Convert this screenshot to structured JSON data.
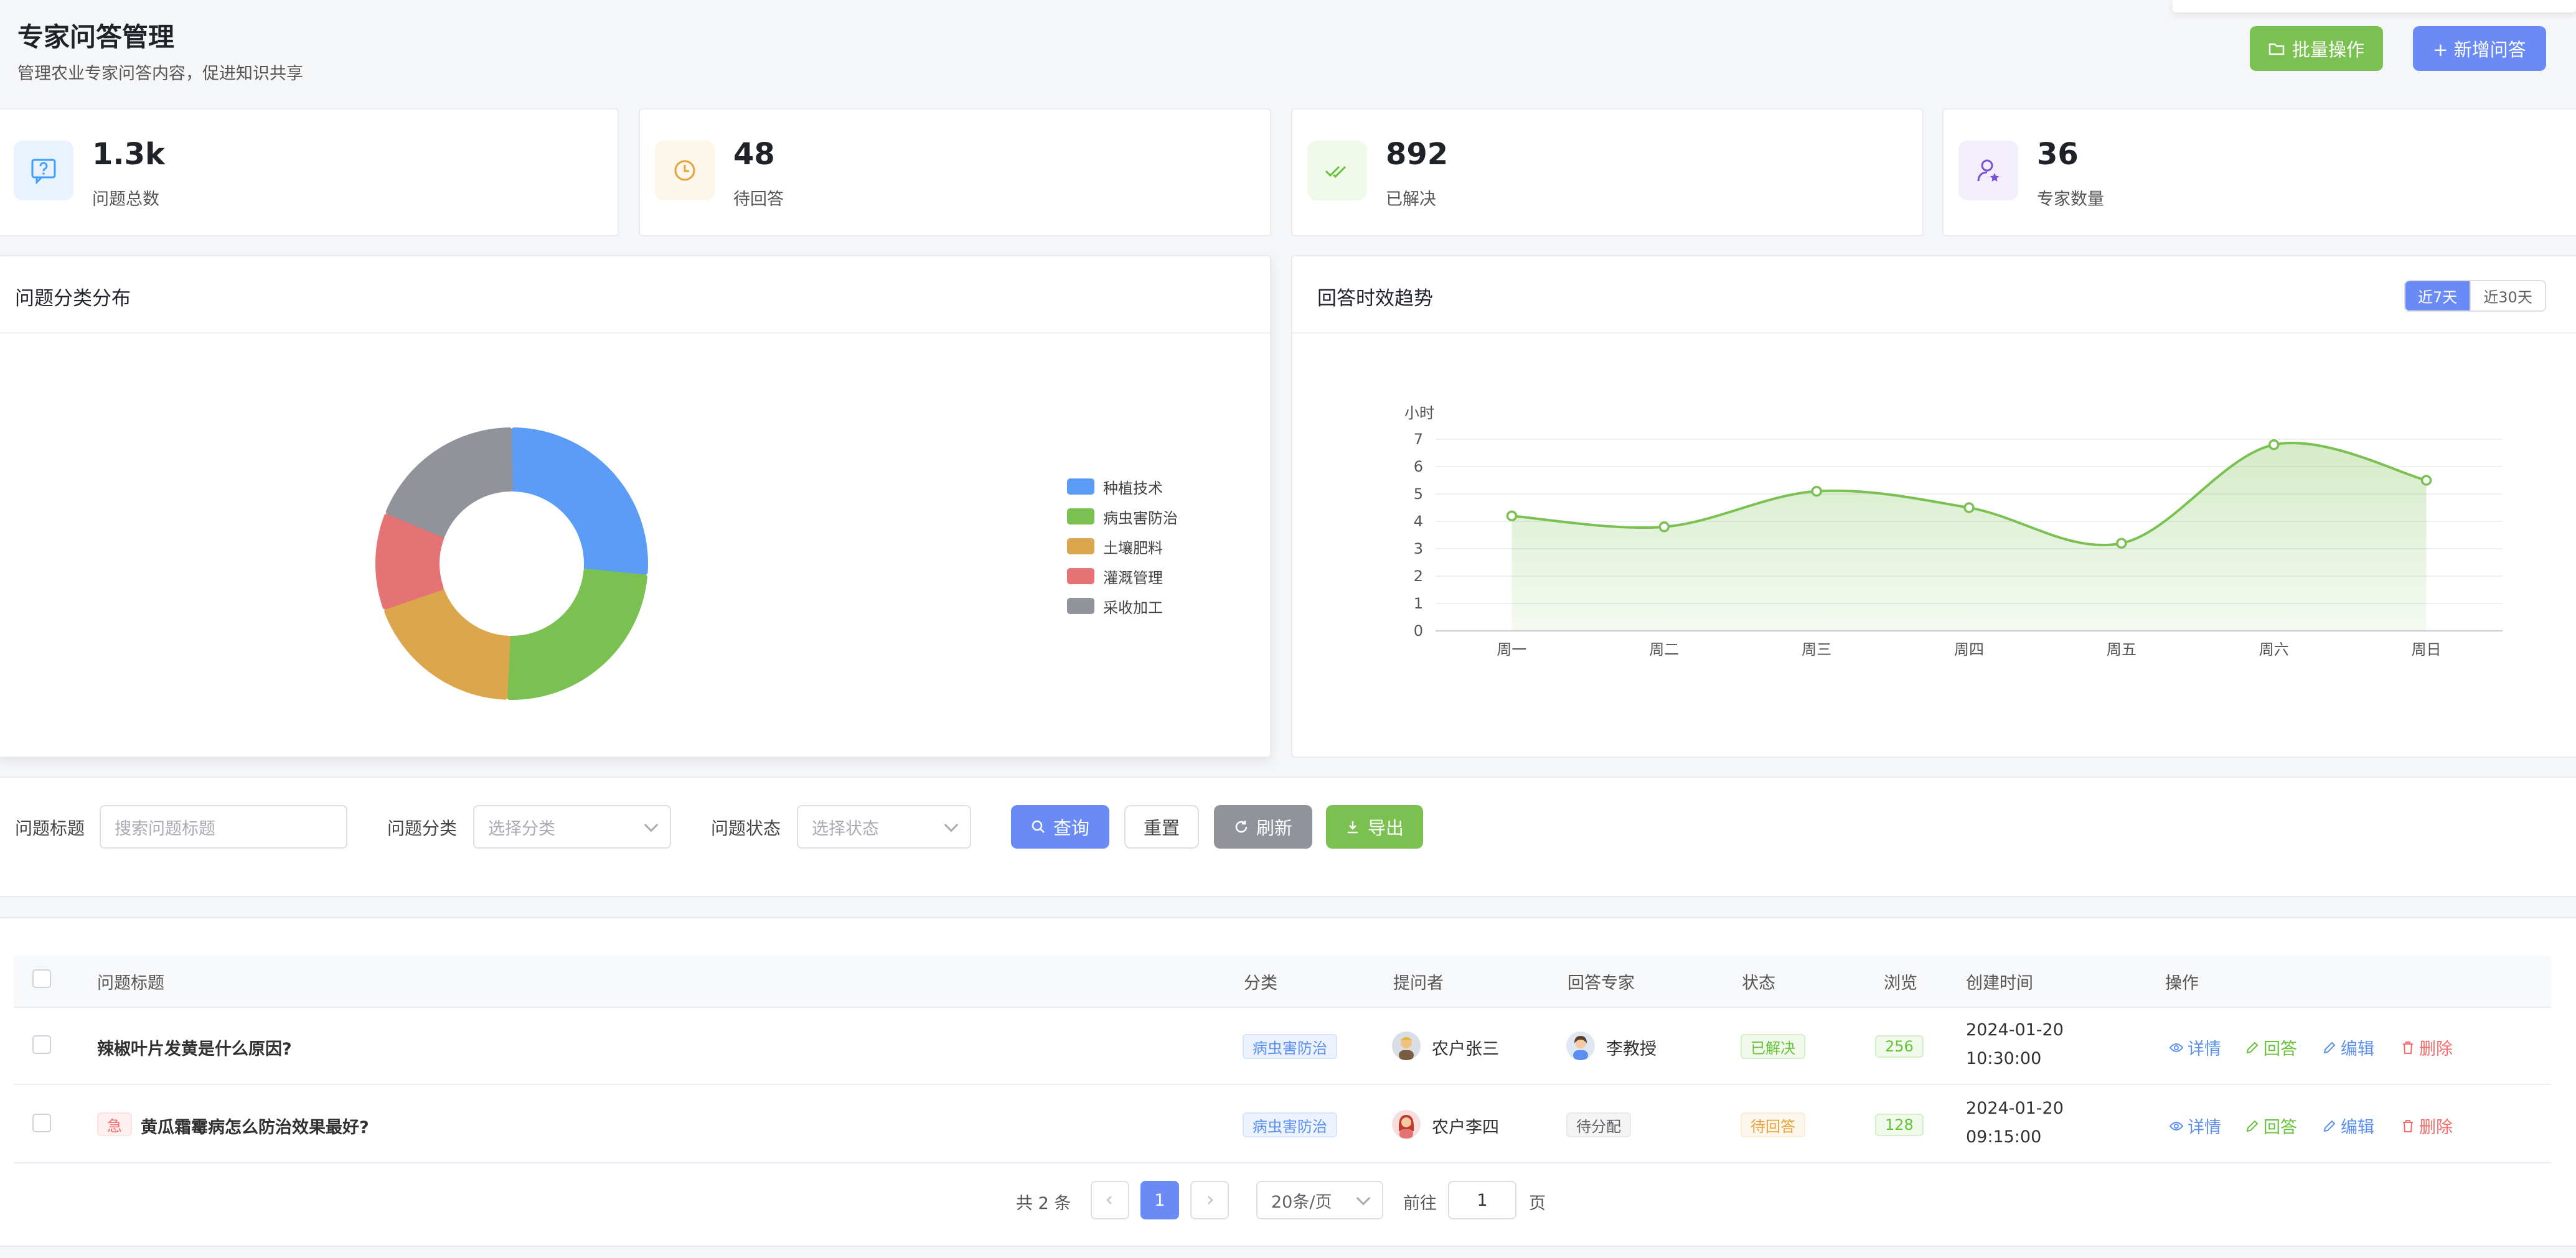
{
  "header": {
    "title": "专家问答管理",
    "subtitle": "管理农业专家问答内容，促进知识共享",
    "batch_label": "批量操作",
    "add_label": "+ 新增问答"
  },
  "stats": [
    {
      "value": "1.3k",
      "label": "问题总数",
      "color": "#409eff"
    },
    {
      "value": "48",
      "label": "待回答",
      "color": "#e6a23c"
    },
    {
      "value": "892",
      "label": "已解决",
      "color": "#67c23a"
    },
    {
      "value": "36",
      "label": "专家数量",
      "color": "#7b4fd6"
    }
  ],
  "category_panel": {
    "title": "问题分类分布"
  },
  "trend_panel": {
    "title": "回答时效趋势",
    "range_tabs": [
      "近7天",
      "近30天"
    ],
    "active_tab": "近7天"
  },
  "chart_data": [
    {
      "type": "pie",
      "donut": true,
      "legend": "right",
      "categories": [
        "种植技术",
        "病虫害防治",
        "土壤肥料",
        "灌溉管理",
        "采收加工"
      ],
      "values": [
        25,
        23,
        18,
        11,
        18
      ],
      "colors": [
        "#5b9cf6",
        "#7ac152",
        "#dca64c",
        "#e57373",
        "#909399"
      ]
    },
    {
      "type": "area",
      "smooth": true,
      "ylabel": "小时",
      "categories": [
        "周一",
        "周二",
        "周三",
        "周四",
        "周五",
        "周六",
        "周日"
      ],
      "values": [
        4.2,
        3.8,
        5.1,
        4.5,
        3.2,
        6.8,
        5.5
      ],
      "ylim": [
        0,
        7
      ],
      "yticks": [
        0,
        1,
        2,
        3,
        4,
        5,
        6,
        7
      ],
      "grid": true,
      "color": "#7ac152"
    }
  ],
  "filters": {
    "title_label": "问题标题",
    "title_placeholder": "搜索问题标题",
    "category_label": "问题分类",
    "category_placeholder": "选择分类",
    "status_label": "问题状态",
    "status_placeholder": "选择状态",
    "query_label": "查询",
    "reset_label": "重置",
    "refresh_label": "刷新",
    "export_label": "导出"
  },
  "table": {
    "columns": [
      "问题标题",
      "分类",
      "提问者",
      "回答专家",
      "状态",
      "浏览",
      "创建时间",
      "操作"
    ],
    "rows": [
      {
        "urgent": "",
        "title": "辣椒叶片发黄是什么原因?",
        "category": "病虫害防治",
        "asker": "农户张三",
        "expert": "李教授",
        "status": "已解决",
        "views": "256",
        "date": "2024-01-20",
        "time": "10:30:00"
      },
      {
        "urgent": "急",
        "title": "黄瓜霜霉病怎么防治效果最好?",
        "category": "病虫害防治",
        "asker": "农户李四",
        "expert": "待分配",
        "status": "待回答",
        "views": "128",
        "date": "2024-01-20",
        "time": "09:15:00"
      }
    ],
    "actions": [
      "详情",
      "回答",
      "编辑",
      "删除"
    ]
  },
  "pagination": {
    "total_label": "共 2 条",
    "current_page": "1",
    "page_size_label": "20条/页",
    "goto_label": "前往",
    "goto_value": "1",
    "page_suffix": "页"
  }
}
